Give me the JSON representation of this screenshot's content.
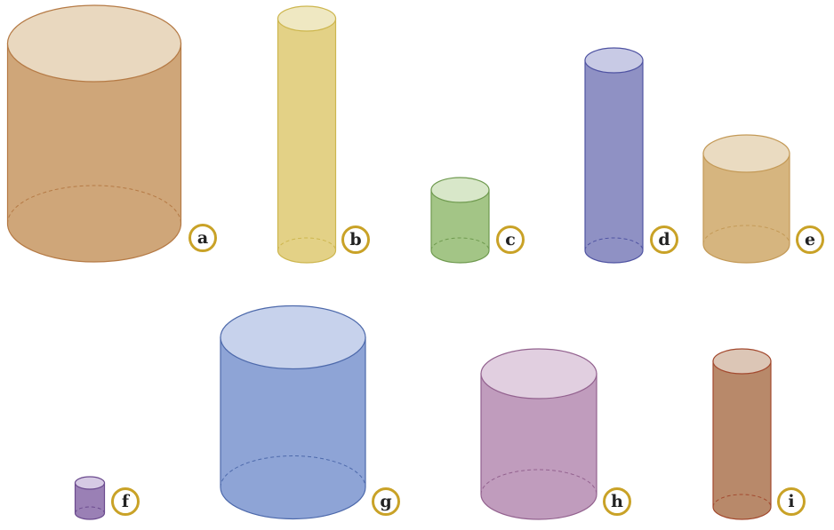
{
  "figure": {
    "label_ring_color": "#c9a227",
    "cylinders": [
      {
        "id": "a",
        "label": "a",
        "fill": "#cfa679",
        "top_fill": "#e9d8bf",
        "stroke": "#b57a45"
      },
      {
        "id": "b",
        "label": "b",
        "fill": "#e3d186",
        "top_fill": "#efe8c2",
        "stroke": "#cdb64e"
      },
      {
        "id": "c",
        "label": "c",
        "fill": "#a3c586",
        "top_fill": "#d8e7c9",
        "stroke": "#6f9a4f"
      },
      {
        "id": "d",
        "label": "d",
        "fill": "#8f91c4",
        "top_fill": "#c8cae5",
        "stroke": "#4f53a2"
      },
      {
        "id": "e",
        "label": "e",
        "fill": "#d6b57f",
        "top_fill": "#eadbc1",
        "stroke": "#c49a57"
      },
      {
        "id": "f",
        "label": "f",
        "fill": "#9a80b5",
        "top_fill": "#d6cae4",
        "stroke": "#6b4a8e"
      },
      {
        "id": "g",
        "label": "g",
        "fill": "#8ea4d6",
        "top_fill": "#c7d2ec",
        "stroke": "#4d69ab"
      },
      {
        "id": "h",
        "label": "h",
        "fill": "#c09cbd",
        "top_fill": "#e1cfe0",
        "stroke": "#93628f"
      },
      {
        "id": "i",
        "label": "i",
        "fill": "#b8896a",
        "top_fill": "#dcc6b6",
        "stroke": "#a3492e"
      }
    ]
  }
}
